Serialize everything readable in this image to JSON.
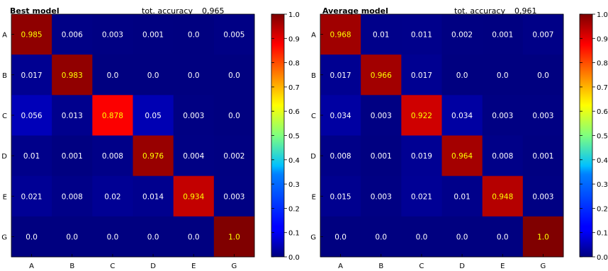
{
  "chart_data": [
    {
      "type": "heatmap",
      "title": "Best model",
      "accuracy_label": "tot. accuracy",
      "accuracy_value": "0,965",
      "rows": [
        "A",
        "B",
        "C",
        "D",
        "E",
        "G"
      ],
      "cols": [
        "A",
        "B",
        "C",
        "D",
        "E",
        "G"
      ],
      "values": [
        [
          0.985,
          0.006,
          0.003,
          0.001,
          0.0,
          0.005
        ],
        [
          0.017,
          0.983,
          0.0,
          0.0,
          0.0,
          0.0
        ],
        [
          0.056,
          0.013,
          0.878,
          0.05,
          0.003,
          0.0
        ],
        [
          0.01,
          0.001,
          0.008,
          0.976,
          0.004,
          0.002
        ],
        [
          0.021,
          0.008,
          0.02,
          0.014,
          0.934,
          0.003
        ],
        [
          0.0,
          0.0,
          0.0,
          0.0,
          0.0,
          1.0
        ]
      ],
      "colorbar": {
        "range": [
          0.0,
          1.0
        ],
        "ticks": [
          "0.0",
          "0.1",
          "0.2",
          "0.3",
          "0.4",
          "0.5",
          "0.6",
          "0.7",
          "0.8",
          "0.9",
          "1.0"
        ]
      }
    },
    {
      "type": "heatmap",
      "title": "Average model",
      "accuracy_label": "tot. accuracy",
      "accuracy_value": "0,961",
      "rows": [
        "A",
        "B",
        "C",
        "D",
        "E",
        "G"
      ],
      "cols": [
        "A",
        "B",
        "C",
        "D",
        "E",
        "G"
      ],
      "values": [
        [
          0.968,
          0.01,
          0.011,
          0.002,
          0.001,
          0.007
        ],
        [
          0.017,
          0.966,
          0.017,
          0.0,
          0.0,
          0.0
        ],
        [
          0.034,
          0.003,
          0.922,
          0.034,
          0.003,
          0.003
        ],
        [
          0.008,
          0.001,
          0.019,
          0.964,
          0.008,
          0.001
        ],
        [
          0.015,
          0.003,
          0.021,
          0.01,
          0.948,
          0.003
        ],
        [
          0.0,
          0.0,
          0.0,
          0.0,
          0.0,
          1.0
        ]
      ],
      "colorbar": {
        "range": [
          0.0,
          1.0
        ],
        "ticks": [
          "0.0",
          "0.1",
          "0.2",
          "0.3",
          "0.4",
          "0.5",
          "0.6",
          "0.7",
          "0.8",
          "0.9",
          "1.0"
        ]
      }
    }
  ],
  "colors": {
    "highlight_text": "#ffff00",
    "normal_text": "#ffffff"
  }
}
